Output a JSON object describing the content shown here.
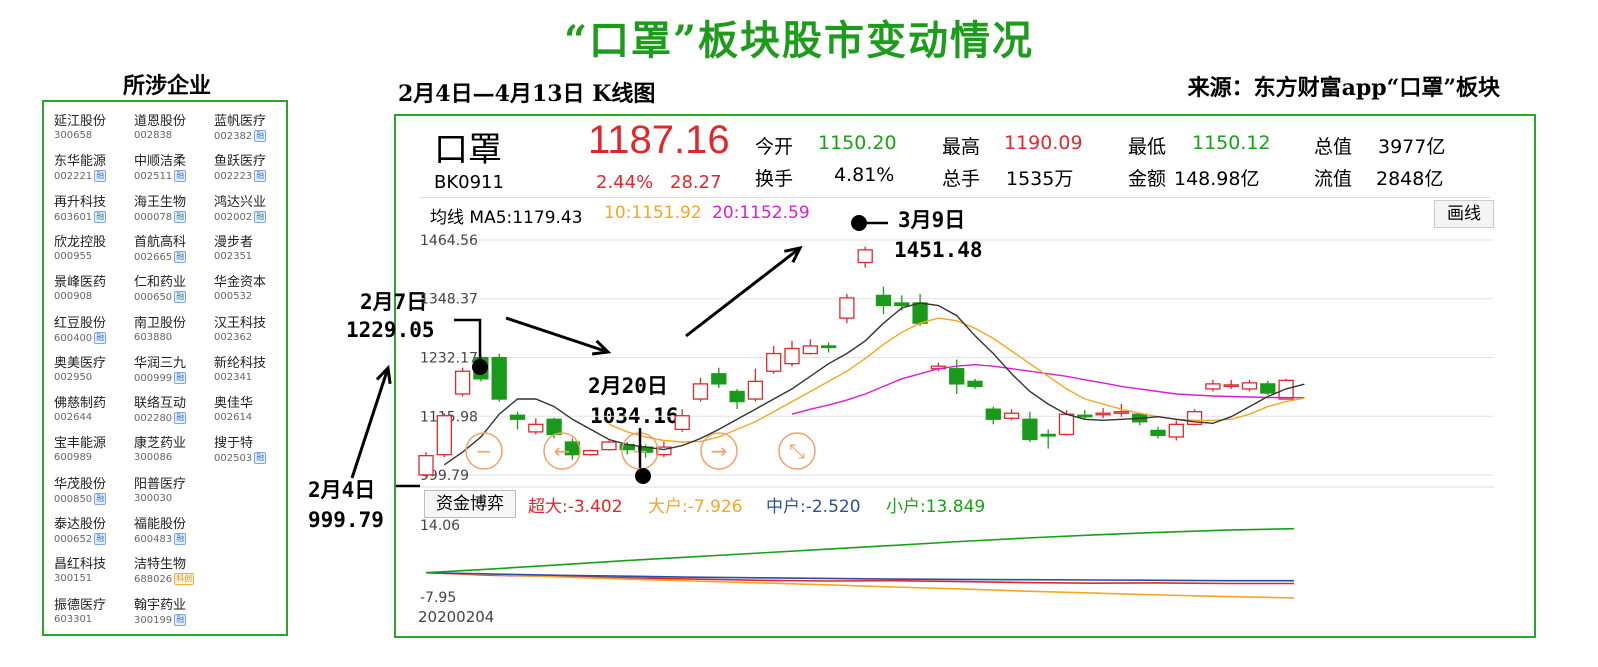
{
  "title": "“口罩”板块股市变动情况",
  "left_title": "所涉企业",
  "chart_title": "2月4日—4月13日 K线图",
  "source": "来源：东方财富app“口罩”板块",
  "companies": [
    {
      "name": "延江股份",
      "code": "300658",
      "badge": ""
    },
    {
      "name": "道恩股份",
      "code": "002838",
      "badge": ""
    },
    {
      "name": "蓝帆医疗",
      "code": "002382",
      "badge": "融"
    },
    {
      "name": "东华能源",
      "code": "002221",
      "badge": "融"
    },
    {
      "name": "中顺洁柔",
      "code": "002511",
      "badge": "融"
    },
    {
      "name": "鱼跃医疗",
      "code": "002223",
      "badge": "融"
    },
    {
      "name": "再升科技",
      "code": "603601",
      "badge": "融"
    },
    {
      "name": "海王生物",
      "code": "000078",
      "badge": "融"
    },
    {
      "name": "鸿达兴业",
      "code": "002002",
      "badge": "融"
    },
    {
      "name": "欣龙控股",
      "code": "000955",
      "badge": ""
    },
    {
      "name": "首航高科",
      "code": "002665",
      "badge": "融"
    },
    {
      "name": "漫步者",
      "code": "002351",
      "badge": ""
    },
    {
      "name": "景峰医药",
      "code": "000908",
      "badge": ""
    },
    {
      "name": "仁和药业",
      "code": "000650",
      "badge": "融"
    },
    {
      "name": "华金资本",
      "code": "000532",
      "badge": ""
    },
    {
      "name": "红豆股份",
      "code": "600400",
      "badge": "融"
    },
    {
      "name": "南卫股份",
      "code": "603880",
      "badge": ""
    },
    {
      "name": "汉王科技",
      "code": "002362",
      "badge": ""
    },
    {
      "name": "奥美医疗",
      "code": "002950",
      "badge": ""
    },
    {
      "name": "华润三九",
      "code": "000999",
      "badge": "融"
    },
    {
      "name": "新纶科技",
      "code": "002341",
      "badge": ""
    },
    {
      "name": "佛慈制药",
      "code": "002644",
      "badge": ""
    },
    {
      "name": "联络互动",
      "code": "002280",
      "badge": "融"
    },
    {
      "name": "奥佳华",
      "code": "002614",
      "badge": ""
    },
    {
      "name": "宝丰能源",
      "code": "600989",
      "badge": ""
    },
    {
      "name": "康芝药业",
      "code": "300086",
      "badge": ""
    },
    {
      "name": "搜于特",
      "code": "002503",
      "badge": "融"
    },
    {
      "name": "华茂股份",
      "code": "000850",
      "badge": "融"
    },
    {
      "name": "阳普医疗",
      "code": "300030",
      "badge": ""
    },
    null,
    {
      "name": "泰达股份",
      "code": "000652",
      "badge": "融"
    },
    {
      "name": "福能股份",
      "code": "600483",
      "badge": "融"
    },
    null,
    {
      "name": "昌红科技",
      "code": "300151",
      "badge": ""
    },
    {
      "name": "洁特生物",
      "code": "688026",
      "badge": "科创"
    },
    null,
    {
      "name": "振德医疗",
      "code": "603301",
      "badge": ""
    },
    {
      "name": "翰宇药业",
      "code": "300199",
      "badge": "融"
    },
    null
  ],
  "quote": {
    "name": "口罩",
    "code": "BK0911",
    "price": "1187.16",
    "change_pct": "2.44%",
    "change": "28.27",
    "open_label": "今开",
    "open": "1150.20",
    "high_label": "最高",
    "high": "1190.09",
    "low_label": "最低",
    "low": "1150.12",
    "total_value_label": "总值",
    "total_value": "3977亿",
    "turnover_label": "换手",
    "turnover": "4.81%",
    "volume_label": "总手",
    "volume": "1535万",
    "amount_label": "金额",
    "amount": "148.98亿",
    "float_value_label": "流值",
    "float_value": "2848亿"
  },
  "ma": {
    "ma5": "均线 MA5:1179.43",
    "ma10": "10:1151.92",
    "ma20": "20:1152.59",
    "draw_button": "画线"
  },
  "fund": {
    "tab": "资金博弈",
    "super": "超大:-3.402",
    "large": "大户:-7.926",
    "medium": "中户:-2.520",
    "small": "小户:13.849",
    "y_max": "14.06",
    "y_min": "-7.95",
    "date": "20200204"
  },
  "annotations": {
    "a1_date": "2月4日",
    "a1_value": "999.79",
    "a2_date": "2月7日",
    "a2_value": "1229.05",
    "a3_date": "2月20日",
    "a3_value": "1034.16",
    "a4_date": "3月9日",
    "a4_value": "1451.48"
  },
  "colors": {
    "up": "#e0282b",
    "down": "#1a9a1a",
    "ma5": "#333333",
    "ma10": "#f5a623",
    "ma20": "#d81cd8",
    "accent": "#2aa52a"
  },
  "chart_data": {
    "type": "candlestick",
    "title": "2月4日—4月13日 K线图",
    "y_ticks": [
      1464.56,
      1348.37,
      1232.17,
      1115.98,
      999.79
    ],
    "ylim": [
      999.79,
      1464.56
    ],
    "candles": [
      {
        "o": 1000,
        "c": 1038,
        "h": 1045,
        "l": 996
      },
      {
        "o": 1040,
        "c": 1117,
        "h": 1122,
        "l": 1035
      },
      {
        "o": 1160,
        "c": 1205,
        "h": 1212,
        "l": 1155
      },
      {
        "o": 1232,
        "c": 1190,
        "h": 1238,
        "l": 1185
      },
      {
        "o": 1232,
        "c": 1150,
        "h": 1240,
        "l": 1145
      },
      {
        "o": 1118,
        "c": 1110,
        "h": 1125,
        "l": 1090
      },
      {
        "o": 1085,
        "c": 1100,
        "h": 1112,
        "l": 1080
      },
      {
        "o": 1110,
        "c": 1080,
        "h": 1113,
        "l": 1072
      },
      {
        "o": 1065,
        "c": 1040,
        "h": 1072,
        "l": 1030
      },
      {
        "o": 1040,
        "c": 1048,
        "h": 1050,
        "l": 1038
      },
      {
        "o": 1050,
        "c": 1065,
        "h": 1068,
        "l": 1048
      },
      {
        "o": 1060,
        "c": 1050,
        "h": 1065,
        "l": 1040
      },
      {
        "o": 1055,
        "c": 1045,
        "h": 1060,
        "l": 1034
      },
      {
        "o": 1040,
        "c": 1055,
        "h": 1066,
        "l": 1035
      },
      {
        "o": 1090,
        "c": 1117,
        "h": 1130,
        "l": 1085
      },
      {
        "o": 1150,
        "c": 1180,
        "h": 1192,
        "l": 1145
      },
      {
        "o": 1200,
        "c": 1180,
        "h": 1212,
        "l": 1172
      },
      {
        "o": 1165,
        "c": 1145,
        "h": 1170,
        "l": 1130
      },
      {
        "o": 1150,
        "c": 1185,
        "h": 1210,
        "l": 1145
      },
      {
        "o": 1205,
        "c": 1240,
        "h": 1255,
        "l": 1200
      },
      {
        "o": 1220,
        "c": 1250,
        "h": 1265,
        "l": 1215
      },
      {
        "o": 1240,
        "c": 1255,
        "h": 1268,
        "l": 1238
      },
      {
        "o": 1255,
        "c": 1252,
        "h": 1262,
        "l": 1242
      },
      {
        "o": 1310,
        "c": 1350,
        "h": 1358,
        "l": 1300
      },
      {
        "o": 1420,
        "c": 1445,
        "h": 1451.48,
        "l": 1410
      },
      {
        "o": 1355,
        "c": 1335,
        "h": 1372,
        "l": 1318
      },
      {
        "o": 1340,
        "c": 1335,
        "h": 1355,
        "l": 1325
      },
      {
        "o": 1340,
        "c": 1300,
        "h": 1358,
        "l": 1295
      },
      {
        "o": 1210,
        "c": 1215,
        "h": 1222,
        "l": 1205
      },
      {
        "o": 1210,
        "c": 1180,
        "h": 1228,
        "l": 1160
      },
      {
        "o": 1185,
        "c": 1175,
        "h": 1190,
        "l": 1170
      },
      {
        "o": 1130,
        "c": 1110,
        "h": 1135,
        "l": 1100
      },
      {
        "o": 1112,
        "c": 1122,
        "h": 1130,
        "l": 1108
      },
      {
        "o": 1110,
        "c": 1070,
        "h": 1125,
        "l": 1065
      },
      {
        "o": 1080,
        "c": 1078,
        "h": 1090,
        "l": 1052
      },
      {
        "o": 1080,
        "c": 1120,
        "h": 1128,
        "l": 1078
      },
      {
        "o": 1118,
        "c": 1117,
        "h": 1128,
        "l": 1110
      },
      {
        "o": 1120,
        "c": 1122,
        "h": 1132,
        "l": 1112
      },
      {
        "o": 1125,
        "c": 1125,
        "h": 1140,
        "l": 1115
      },
      {
        "o": 1120,
        "c": 1105,
        "h": 1123,
        "l": 1098
      },
      {
        "o": 1088,
        "c": 1078,
        "h": 1095,
        "l": 1072
      },
      {
        "o": 1075,
        "c": 1100,
        "h": 1108,
        "l": 1068
      },
      {
        "o": 1100,
        "c": 1125,
        "h": 1130,
        "l": 1098
      },
      {
        "o": 1170,
        "c": 1180,
        "h": 1188,
        "l": 1165
      },
      {
        "o": 1178,
        "c": 1178,
        "h": 1188,
        "l": 1170
      },
      {
        "o": 1170,
        "c": 1182,
        "h": 1188,
        "l": 1165
      },
      {
        "o": 1180,
        "c": 1162,
        "h": 1186,
        "l": 1158
      },
      {
        "o": 1150,
        "c": 1187,
        "h": 1190,
        "l": 1150
      }
    ],
    "ma5": [
      1020,
      1045,
      1075,
      1120,
      1150,
      1150,
      1135,
      1110,
      1090,
      1070,
      1060,
      1055,
      1050,
      1058,
      1072,
      1090,
      1110,
      1130,
      1150,
      1170,
      1195,
      1220,
      1240,
      1265,
      1300,
      1330,
      1340,
      1335,
      1315,
      1275,
      1240,
      1200,
      1165,
      1140,
      1120,
      1110,
      1108,
      1110,
      1112,
      1115,
      1110,
      1105,
      1102,
      1115,
      1135,
      1155,
      1170,
      1179.43
    ],
    "ma10": [
      null,
      null,
      null,
      null,
      null,
      null,
      null,
      null,
      null,
      1100,
      1085,
      1075,
      1068,
      1065,
      1066,
      1075,
      1090,
      1105,
      1125,
      1145,
      1165,
      1185,
      1205,
      1230,
      1258,
      1282,
      1300,
      1310,
      1305,
      1290,
      1270,
      1245,
      1220,
      1195,
      1170,
      1150,
      1140,
      1130,
      1122,
      1115,
      1110,
      1108,
      1108,
      1110,
      1120,
      1135,
      1145,
      1151.92
    ],
    "ma20": [
      null,
      null,
      null,
      null,
      null,
      null,
      null,
      null,
      null,
      null,
      null,
      null,
      null,
      null,
      null,
      null,
      null,
      null,
      null,
      1120,
      1130,
      1138,
      1148,
      1160,
      1175,
      1190,
      1200,
      1210,
      1215,
      1218,
      1215,
      1210,
      1205,
      1200,
      1195,
      1188,
      1182,
      1175,
      1170,
      1165,
      1160,
      1158,
      1156,
      1155,
      1154,
      1153,
      1152.8,
      1152.59
    ],
    "fund_series": [
      {
        "name": "超大",
        "values": [
          0,
          -0.8,
          -1.2,
          -1.6,
          -2.0,
          -2.4,
          -2.6,
          -2.5,
          -2.8,
          -3.1,
          -3.3,
          -3.2,
          -3.4,
          -3.402
        ]
      },
      {
        "name": "大户",
        "values": [
          0,
          -0.6,
          -1.3,
          -2.0,
          -2.6,
          -3.2,
          -3.8,
          -4.5,
          -5.1,
          -5.8,
          -6.4,
          -7.0,
          -7.5,
          -7.926
        ]
      },
      {
        "name": "中户",
        "values": [
          0,
          -0.4,
          -0.8,
          -1.1,
          -1.4,
          -1.6,
          -1.8,
          -2.0,
          -2.1,
          -2.2,
          -2.3,
          -2.4,
          -2.5,
          -2.52
        ]
      },
      {
        "name": "小户",
        "values": [
          0,
          1.2,
          2.5,
          3.8,
          5.0,
          6.2,
          7.4,
          8.6,
          9.8,
          10.9,
          11.9,
          12.7,
          13.4,
          13.849
        ]
      }
    ],
    "fund_ylim": [
      -7.95,
      14.06
    ]
  }
}
